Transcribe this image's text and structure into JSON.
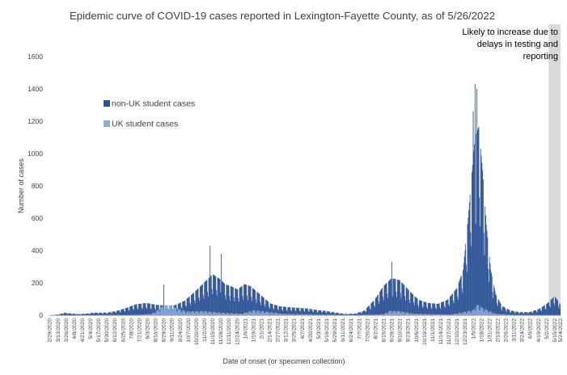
{
  "chart_data": {
    "type": "bar",
    "title": "Epidemic curve of COVID-19 cases reported in Lexington-Fayette County, as of 5/26/2022",
    "xlabel": "Date of onset (or specimen collection)",
    "ylabel": "Number of cases",
    "ylim": [
      0,
      1600
    ],
    "yticks": [
      0,
      200,
      400,
      600,
      800,
      1000,
      1200,
      1400,
      1600
    ],
    "stacked": true,
    "x_start": "2020-02-29",
    "x_end": "2022-05-24",
    "x_tick_labels": [
      "2/29/2020",
      "3/13/2020",
      "3/26/2020",
      "4/8/2020",
      "4/21/2020",
      "5/4/2020",
      "5/17/2020",
      "5/30/2020",
      "6/12/2020",
      "6/25/2020",
      "7/8/2020",
      "7/21/2020",
      "8/3/2020",
      "8/16/2020",
      "8/29/2020",
      "9/11/2020",
      "9/24/2020",
      "10/7/2020",
      "10/20/2020",
      "11/2/2020",
      "11/15/2020",
      "11/28/2020",
      "12/11/2020",
      "12/24/2020",
      "1/6/2021",
      "1/19/2021",
      "2/1/2021",
      "2/14/2021",
      "2/27/2021",
      "3/12/2021",
      "3/25/2021",
      "4/7/2021",
      "4/20/2021",
      "5/3/2021",
      "5/16/2021",
      "5/29/2021",
      "6/11/2021",
      "6/24/2021",
      "7/7/2021",
      "7/20/2021",
      "8/2/2021",
      "8/15/2021",
      "8/28/2021",
      "9/10/2021",
      "9/23/2021",
      "10/6/2021",
      "10/19/2021",
      "11/1/2021",
      "11/14/2021",
      "11/27/2021",
      "12/10/2021",
      "12/23/2021",
      "1/5/2022",
      "1/18/2022",
      "1/31/2022",
      "2/13/2022",
      "2/26/2022",
      "3/11/2022",
      "3/24/2022",
      "4/6/2022",
      "4/19/2022",
      "5/2/2022",
      "5/15/2022",
      "5/24/2022"
    ],
    "series": [
      {
        "name": "non-UK student cases",
        "color": "#2F5597",
        "anchors": [
          [
            "2020-02-29",
            0
          ],
          [
            "2020-03-14",
            4
          ],
          [
            "2020-03-24",
            14
          ],
          [
            "2020-04-05",
            9
          ],
          [
            "2020-04-15",
            6
          ],
          [
            "2020-05-01",
            10
          ],
          [
            "2020-05-10",
            15
          ],
          [
            "2020-05-20",
            14
          ],
          [
            "2020-06-01",
            15
          ],
          [
            "2020-06-15",
            25
          ],
          [
            "2020-07-01",
            42
          ],
          [
            "2020-07-15",
            62
          ],
          [
            "2020-08-01",
            70
          ],
          [
            "2020-08-20",
            58
          ],
          [
            "2020-09-01",
            55
          ],
          [
            "2020-09-15",
            56
          ],
          [
            "2020-10-01",
            82
          ],
          [
            "2020-10-15",
            125
          ],
          [
            "2020-11-01",
            185
          ],
          [
            "2020-11-15",
            235
          ],
          [
            "2020-11-25",
            212
          ],
          [
            "2020-12-05",
            178
          ],
          [
            "2020-12-15",
            165
          ],
          [
            "2020-12-25",
            148
          ],
          [
            "2021-01-05",
            178
          ],
          [
            "2021-01-15",
            165
          ],
          [
            "2021-02-01",
            112
          ],
          [
            "2021-02-15",
            68
          ],
          [
            "2021-03-01",
            52
          ],
          [
            "2021-03-15",
            46
          ],
          [
            "2021-04-01",
            42
          ],
          [
            "2021-04-15",
            38
          ],
          [
            "2021-05-01",
            30
          ],
          [
            "2021-05-15",
            24
          ],
          [
            "2021-06-01",
            14
          ],
          [
            "2021-06-15",
            7
          ],
          [
            "2021-07-01",
            9
          ],
          [
            "2021-07-15",
            26
          ],
          [
            "2021-08-01",
            90
          ],
          [
            "2021-08-15",
            168
          ],
          [
            "2021-08-28",
            212
          ],
          [
            "2021-09-10",
            200
          ],
          [
            "2021-09-25",
            140
          ],
          [
            "2021-10-10",
            88
          ],
          [
            "2021-10-25",
            70
          ],
          [
            "2021-11-10",
            65
          ],
          [
            "2021-11-25",
            88
          ],
          [
            "2021-12-10",
            155
          ],
          [
            "2021-12-20",
            260
          ],
          [
            "2021-12-28",
            560
          ],
          [
            "2022-01-03",
            820
          ],
          [
            "2022-01-08",
            1020
          ],
          [
            "2022-01-14",
            1080
          ],
          [
            "2022-01-20",
            830
          ],
          [
            "2022-01-26",
            520
          ],
          [
            "2022-02-02",
            260
          ],
          [
            "2022-02-10",
            120
          ],
          [
            "2022-02-20",
            52
          ],
          [
            "2022-03-05",
            28
          ],
          [
            "2022-03-20",
            17
          ],
          [
            "2022-04-05",
            18
          ],
          [
            "2022-04-20",
            35
          ],
          [
            "2022-05-05",
            72
          ],
          [
            "2022-05-15",
            110
          ],
          [
            "2022-05-24",
            62
          ]
        ]
      },
      {
        "name": "UK student cases",
        "color": "#8EA9DB",
        "anchors": [
          [
            "2020-02-29",
            0
          ],
          [
            "2020-07-15",
            2
          ],
          [
            "2020-08-10",
            8
          ],
          [
            "2020-08-20",
            32
          ],
          [
            "2020-08-30",
            60
          ],
          [
            "2020-09-08",
            58
          ],
          [
            "2020-09-20",
            38
          ],
          [
            "2020-10-05",
            22
          ],
          [
            "2020-11-01",
            25
          ],
          [
            "2020-12-01",
            14
          ],
          [
            "2021-01-01",
            9
          ],
          [
            "2021-01-20",
            30
          ],
          [
            "2021-02-10",
            20
          ],
          [
            "2021-03-10",
            8
          ],
          [
            "2021-05-01",
            4
          ],
          [
            "2021-07-01",
            1
          ],
          [
            "2021-08-15",
            6
          ],
          [
            "2021-08-25",
            26
          ],
          [
            "2021-09-10",
            24
          ],
          [
            "2021-10-01",
            10
          ],
          [
            "2021-11-01",
            6
          ],
          [
            "2021-12-01",
            4
          ],
          [
            "2022-01-05",
            30
          ],
          [
            "2022-01-12",
            62
          ],
          [
            "2022-01-20",
            42
          ],
          [
            "2022-02-10",
            8
          ],
          [
            "2022-03-15",
            2
          ],
          [
            "2022-05-24",
            1
          ]
        ]
      }
    ],
    "labeled_peaks_non_uk": [
      [
        "2020-11-11",
        430
      ],
      [
        "2020-11-29",
        380
      ],
      [
        "2022-01-08",
        1430
      ],
      [
        "2022-01-11",
        1400
      ],
      [
        "2022-01-05",
        1260
      ],
      [
        "2021-08-28",
        330
      ],
      [
        "2020-08-29",
        190
      ]
    ],
    "legend": {
      "placement": "left-middle"
    },
    "annotation": {
      "text": "Likely to increase due to delays in testing and reporting",
      "lines": [
        "Likely to increase due to",
        "delays in testing and",
        "reporting"
      ],
      "shaded_from": "2022-05-06",
      "shaded_to": "2022-05-24",
      "shade_color": "#D9D9D9"
    },
    "grid": false
  }
}
